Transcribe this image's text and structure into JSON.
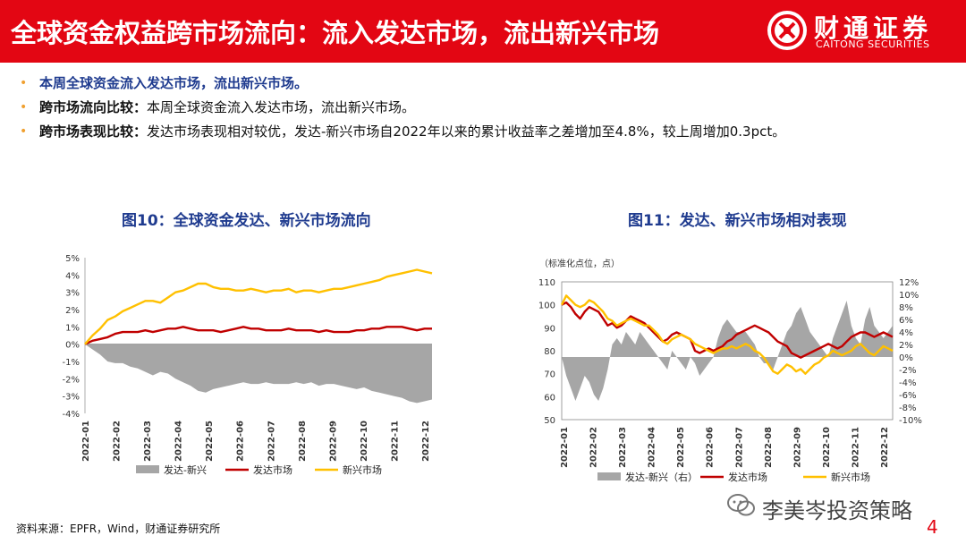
{
  "header": {
    "title": "全球资金权益跨市场流向：流入发达市场，流出新兴市场",
    "logo_cn": "财通证券",
    "logo_en": "CAITONG SECURITIES"
  },
  "bullets": [
    {
      "lead": "本周全球资金流入发达市场，流出新兴市场。",
      "text": ""
    },
    {
      "lead": "跨市场流向比较：",
      "text": "本周全球资金流入发达市场，流出新兴市场。"
    },
    {
      "lead": "跨市场表现比较：",
      "text": "发达市场表现相对较优，发达-新兴市场自2022年以来的累计收益率之差增加至4.8%，较上周增加0.3pct。"
    }
  ],
  "source": "资料来源：EPFR，Wind，财通证券研究所",
  "watermark": "李美岑投资策略",
  "page_number": "4",
  "colors": {
    "red": "#c00000",
    "yellow": "#ffc000",
    "gray": "#a6a6a6",
    "brand": "#e30613",
    "title_blue": "#1f3b8f"
  },
  "chart_data": [
    {
      "type": "line",
      "title": "图10：全球资金发达、新兴市场流向",
      "x_ticks": [
        "2022-01",
        "2022-02",
        "2022-03",
        "2022-04",
        "2022-05",
        "2022-06",
        "2022-07",
        "2022-08",
        "2022-09",
        "2022-10",
        "2022-11",
        "2022-12"
      ],
      "y_ticks": [
        "5%",
        "4%",
        "3%",
        "2%",
        "1%",
        "0%",
        "-1%",
        "-2%",
        "-3%",
        "-4%"
      ],
      "ylim": [
        -4,
        5
      ],
      "series": [
        {
          "name": "发达-新兴",
          "kind": "area",
          "color": "#a6a6a6",
          "values": [
            0,
            -0.3,
            -0.6,
            -1.0,
            -1.1,
            -1.1,
            -1.3,
            -1.4,
            -1.6,
            -1.8,
            -1.6,
            -1.7,
            -2.0,
            -2.2,
            -2.4,
            -2.7,
            -2.8,
            -2.6,
            -2.5,
            -2.4,
            -2.3,
            -2.2,
            -2.3,
            -2.3,
            -2.2,
            -2.3,
            -2.3,
            -2.3,
            -2.2,
            -2.3,
            -2.2,
            -2.4,
            -2.3,
            -2.3,
            -2.4,
            -2.5,
            -2.6,
            -2.5,
            -2.7,
            -2.8,
            -2.9,
            -3.0,
            -3.1,
            -3.3,
            -3.4,
            -3.3,
            -3.2
          ]
        },
        {
          "name": "发达市场",
          "kind": "line",
          "color": "#c00000",
          "values": [
            0,
            0.2,
            0.3,
            0.4,
            0.6,
            0.7,
            0.7,
            0.7,
            0.8,
            0.7,
            0.8,
            0.9,
            0.9,
            1.0,
            0.9,
            0.8,
            0.8,
            0.8,
            0.7,
            0.8,
            0.9,
            1.0,
            0.9,
            0.9,
            0.8,
            0.8,
            0.8,
            0.9,
            0.8,
            0.8,
            0.8,
            0.7,
            0.8,
            0.7,
            0.7,
            0.7,
            0.8,
            0.8,
            0.9,
            0.9,
            1.0,
            1.0,
            1.0,
            0.9,
            0.8,
            0.9,
            0.9
          ]
        },
        {
          "name": "新兴市场",
          "kind": "line",
          "color": "#ffc000",
          "values": [
            0,
            0.5,
            0.9,
            1.4,
            1.6,
            1.9,
            2.1,
            2.3,
            2.5,
            2.5,
            2.4,
            2.7,
            3.0,
            3.1,
            3.3,
            3.5,
            3.5,
            3.3,
            3.2,
            3.2,
            3.1,
            3.1,
            3.2,
            3.1,
            3.0,
            3.1,
            3.1,
            3.2,
            3.0,
            3.1,
            3.1,
            3.0,
            3.1,
            3.2,
            3.2,
            3.3,
            3.4,
            3.5,
            3.6,
            3.7,
            3.9,
            4.0,
            4.1,
            4.2,
            4.3,
            4.2,
            4.1
          ]
        }
      ]
    },
    {
      "type": "line",
      "title": "图11：发达、新兴市场相对表现",
      "ylabel_left": "（标准化点位，点）",
      "x_ticks": [
        "2022-01",
        "2022-02",
        "2022-03",
        "2022-04",
        "2022-05",
        "2022-06",
        "2022-07",
        "2022-08",
        "2022-09",
        "2022-10",
        "2022-11",
        "2022-12"
      ],
      "y_left_ticks": [
        "110",
        "100",
        "90",
        "80",
        "70",
        "60",
        "50"
      ],
      "y_right_ticks": [
        "12%",
        "10%",
        "8%",
        "6%",
        "4%",
        "2%",
        "0%",
        "-2%",
        "-4%",
        "-6%",
        "-8%",
        "-10%"
      ],
      "ylim_left": [
        50,
        110
      ],
      "ylim_right": [
        -10,
        12
      ],
      "series": [
        {
          "name": "发达-新兴（右）",
          "kind": "area",
          "axis": "right",
          "color": "#a6a6a6",
          "values": [
            0,
            -3,
            -5,
            -7,
            -5,
            -3,
            -4,
            -6,
            -7,
            -5,
            -2,
            2,
            3,
            2,
            4,
            3,
            2,
            4,
            3,
            2,
            1,
            0,
            -1,
            -2,
            1,
            0,
            -1,
            -2,
            0,
            -1,
            -3,
            -2,
            -1,
            0,
            3,
            5,
            6,
            5,
            4,
            4,
            4,
            3,
            2,
            0,
            -1,
            -1,
            -2,
            0,
            2,
            4,
            5,
            7,
            8,
            6,
            4,
            3,
            2,
            1,
            0,
            3,
            5,
            7,
            9,
            5,
            3,
            2,
            6,
            8,
            5,
            4,
            3,
            4,
            5
          ]
        },
        {
          "name": "发达市场",
          "kind": "line",
          "axis": "left",
          "color": "#c00000",
          "values": [
            100,
            101,
            99,
            96,
            94,
            97,
            99,
            98,
            97,
            94,
            91,
            92,
            90,
            91,
            93,
            95,
            94,
            93,
            92,
            90,
            88,
            86,
            84,
            85,
            87,
            88,
            87,
            86,
            85,
            80,
            79,
            80,
            81,
            80,
            81,
            82,
            84,
            85,
            87,
            88,
            89,
            90,
            91,
            90,
            89,
            88,
            86,
            84,
            83,
            82,
            79,
            78,
            77,
            78,
            79,
            80,
            81,
            82,
            83,
            82,
            81,
            82,
            84,
            86,
            87,
            88,
            88,
            87,
            86,
            87,
            88,
            87,
            86
          ]
        },
        {
          "name": "新兴市场",
          "kind": "line",
          "axis": "left",
          "color": "#ffc000",
          "values": [
            100,
            104,
            102,
            100,
            99,
            100,
            102,
            101,
            99,
            97,
            94,
            93,
            91,
            92,
            93,
            94,
            93,
            92,
            91,
            91,
            89,
            87,
            84,
            83,
            85,
            86,
            87,
            86,
            85,
            83,
            82,
            81,
            80,
            79,
            80,
            81,
            81,
            82,
            81,
            82,
            83,
            82,
            80,
            79,
            77,
            74,
            71,
            70,
            72,
            74,
            73,
            71,
            72,
            70,
            72,
            74,
            75,
            77,
            78,
            80,
            79,
            78,
            79,
            80,
            82,
            83,
            81,
            79,
            78,
            80,
            82,
            81,
            80
          ]
        }
      ]
    }
  ]
}
